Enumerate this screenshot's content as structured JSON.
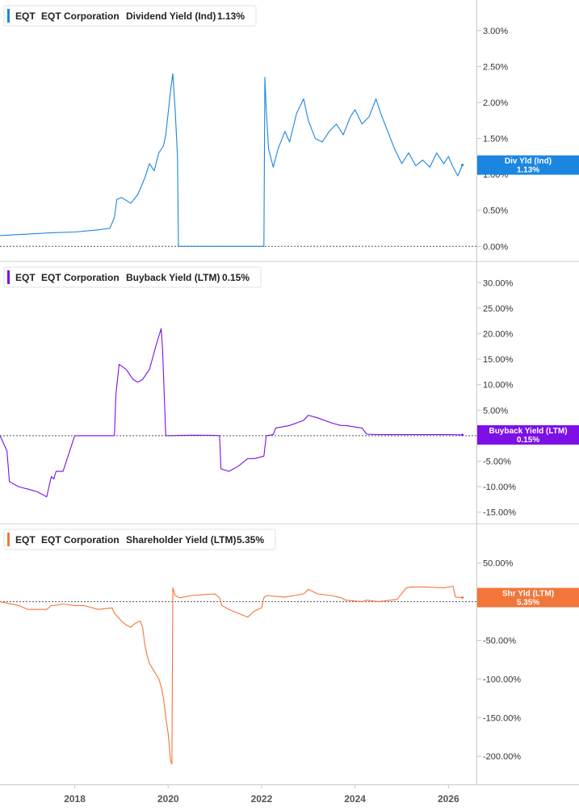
{
  "chart_data": [
    {
      "type": "line",
      "legend": {
        "ticker": "EQT",
        "company": "EQT Corporation",
        "metric": "Dividend Yield (Ind)",
        "value": "1.13%"
      },
      "tag": {
        "line1": "Div Yld (Ind)",
        "line2": "1.13%"
      },
      "color": "#1a86e0",
      "ylim": [
        -0.12,
        3.2
      ],
      "yticks": [
        0,
        0.5,
        1.0,
        1.5,
        2.0,
        2.5,
        3.0
      ],
      "ytick_labels": [
        "0.00%",
        "0.50%",
        "1.00%",
        "1.50%",
        "2.00%",
        "2.50%",
        "3.00%"
      ],
      "reference_line": 0,
      "x": [
        2016.4,
        2017.0,
        2017.5,
        2018.0,
        2018.5,
        2018.75,
        2018.85,
        2018.9,
        2019.0,
        2019.2,
        2019.35,
        2019.5,
        2019.6,
        2019.7,
        2019.8,
        2019.9,
        2019.95,
        2020.0,
        2020.05,
        2020.1,
        2020.15,
        2020.2,
        2020.22,
        2020.24,
        2022.05,
        2022.07,
        2022.1,
        2022.15,
        2022.25,
        2022.35,
        2022.5,
        2022.6,
        2022.75,
        2022.9,
        2023.0,
        2023.15,
        2023.3,
        2023.45,
        2023.6,
        2023.75,
        2023.9,
        2024.0,
        2024.15,
        2024.3,
        2024.45,
        2024.55,
        2024.7,
        2024.85,
        2025.0,
        2025.15,
        2025.3,
        2025.45,
        2025.6,
        2025.75,
        2025.9,
        2026.0,
        2026.1,
        2026.2,
        2026.3
      ],
      "values": [
        0.15,
        0.17,
        0.19,
        0.2,
        0.23,
        0.25,
        0.4,
        0.65,
        0.68,
        0.6,
        0.72,
        0.95,
        1.15,
        1.05,
        1.3,
        1.4,
        1.55,
        1.85,
        2.15,
        2.4,
        1.9,
        1.25,
        0,
        0,
        0,
        2.35,
        1.9,
        1.35,
        1.1,
        1.35,
        1.6,
        1.45,
        1.85,
        2.05,
        1.75,
        1.5,
        1.45,
        1.6,
        1.7,
        1.55,
        1.8,
        1.9,
        1.7,
        1.8,
        2.05,
        1.85,
        1.6,
        1.35,
        1.15,
        1.3,
        1.12,
        1.2,
        1.1,
        1.3,
        1.15,
        1.25,
        1.1,
        0.98,
        1.13
      ]
    },
    {
      "type": "line",
      "legend": {
        "ticker": "EQT",
        "company": "EQT Corporation",
        "metric": "Buyback Yield (LTM)",
        "value": "0.15%"
      },
      "tag": {
        "line1": "Buyback Yield (LTM)",
        "line2": "0.15%"
      },
      "color": "#7c10e6",
      "ylim": [
        -16,
        31
      ],
      "yticks": [
        -15,
        -10,
        -5,
        0,
        5,
        10,
        15,
        20,
        25,
        30
      ],
      "ytick_labels": [
        "-15.00%",
        "-10.00%",
        "-5.00%",
        "",
        "5.00%",
        "10.00%",
        "15.00%",
        "20.00%",
        "25.00%",
        "30.00%"
      ],
      "reference_line": 0,
      "x": [
        2016.4,
        2016.55,
        2016.6,
        2016.8,
        2017.0,
        2017.2,
        2017.4,
        2017.5,
        2017.55,
        2017.6,
        2017.75,
        2018.0,
        2018.5,
        2018.8,
        2018.85,
        2018.88,
        2018.95,
        2019.1,
        2019.25,
        2019.35,
        2019.45,
        2019.6,
        2019.75,
        2019.85,
        2019.88,
        2019.95,
        2020.5,
        2021.0,
        2021.1,
        2021.13,
        2021.3,
        2021.5,
        2021.7,
        2021.85,
        2022.05,
        2022.1,
        2022.25,
        2022.3,
        2022.6,
        2022.9,
        2023.0,
        2023.2,
        2023.5,
        2023.7,
        2023.8,
        2024.15,
        2024.25,
        2024.5,
        2025.0,
        2025.5,
        2026.0,
        2026.3
      ],
      "values": [
        0,
        -3,
        -9,
        -10,
        -10.5,
        -11,
        -12,
        -8,
        -8.5,
        -7,
        -7,
        0,
        0,
        0,
        0,
        8,
        14,
        13,
        11,
        10.5,
        11,
        13,
        18,
        21,
        17,
        0,
        0.1,
        0.05,
        0,
        -6.5,
        -7,
        -6,
        -4.5,
        -4.5,
        -4,
        0,
        0.2,
        1.5,
        2,
        3,
        4,
        3.5,
        2.5,
        2,
        2,
        1.5,
        0.3,
        0.2,
        0.2,
        0.2,
        0.2,
        0.15
      ]
    },
    {
      "type": "line",
      "legend": {
        "ticker": "EQT",
        "company": "EQT Corporation",
        "metric": "Shareholder Yield (LTM)",
        "value": "5.35%"
      },
      "tag": {
        "line1": "Shr Yld (LTM)",
        "line2": "5.35%"
      },
      "color": "#f2763a",
      "ylim": [
        -228,
        80
      ],
      "yticks": [
        -200,
        -150,
        -100,
        -50,
        0,
        50
      ],
      "ytick_labels": [
        "-200.00%",
        "-150.00%",
        "-100.00%",
        "-50.00%",
        "",
        "50.00%"
      ],
      "reference_line": 0,
      "x": [
        2016.4,
        2016.8,
        2017.0,
        2017.4,
        2017.5,
        2017.55,
        2017.75,
        2018.0,
        2018.2,
        2018.5,
        2018.8,
        2018.85,
        2019.0,
        2019.1,
        2019.2,
        2019.3,
        2019.4,
        2019.45,
        2019.5,
        2019.55,
        2019.6,
        2019.7,
        2019.8,
        2019.85,
        2019.9,
        2019.95,
        2020.0,
        2020.05,
        2020.08,
        2020.1,
        2020.15,
        2020.25,
        2020.5,
        2021.0,
        2021.1,
        2021.15,
        2021.3,
        2021.5,
        2021.7,
        2021.85,
        2022.0,
        2022.05,
        2022.1,
        2022.5,
        2022.9,
        2023.0,
        2023.2,
        2023.5,
        2023.7,
        2023.8,
        2024.15,
        2024.25,
        2024.5,
        2024.9,
        2025.1,
        2025.2,
        2025.5,
        2025.9,
        2026.1,
        2026.15,
        2026.3
      ],
      "values": [
        0,
        -5,
        -10,
        -10,
        -5,
        -5,
        -3,
        -5,
        -5,
        -10,
        -8,
        -15,
        -25,
        -30,
        -33,
        -28,
        -25,
        -32,
        -55,
        -70,
        -80,
        -90,
        -100,
        -110,
        -125,
        -150,
        -170,
        -205,
        -210,
        18,
        8,
        5,
        8,
        10,
        5,
        -5,
        -10,
        -15,
        -20,
        -12,
        -8,
        5,
        8,
        6,
        10,
        16,
        10,
        8,
        5,
        2,
        0,
        2,
        0,
        3,
        18,
        19,
        19,
        18,
        20,
        6,
        5.35
      ]
    }
  ],
  "x_axis": {
    "xlim": [
      2016.4,
      2026.6
    ],
    "ticks": [
      2018,
      2020,
      2022,
      2024,
      2026
    ],
    "tick_labels": [
      "2018",
      "2020",
      "2022",
      "2024",
      "2026"
    ]
  }
}
